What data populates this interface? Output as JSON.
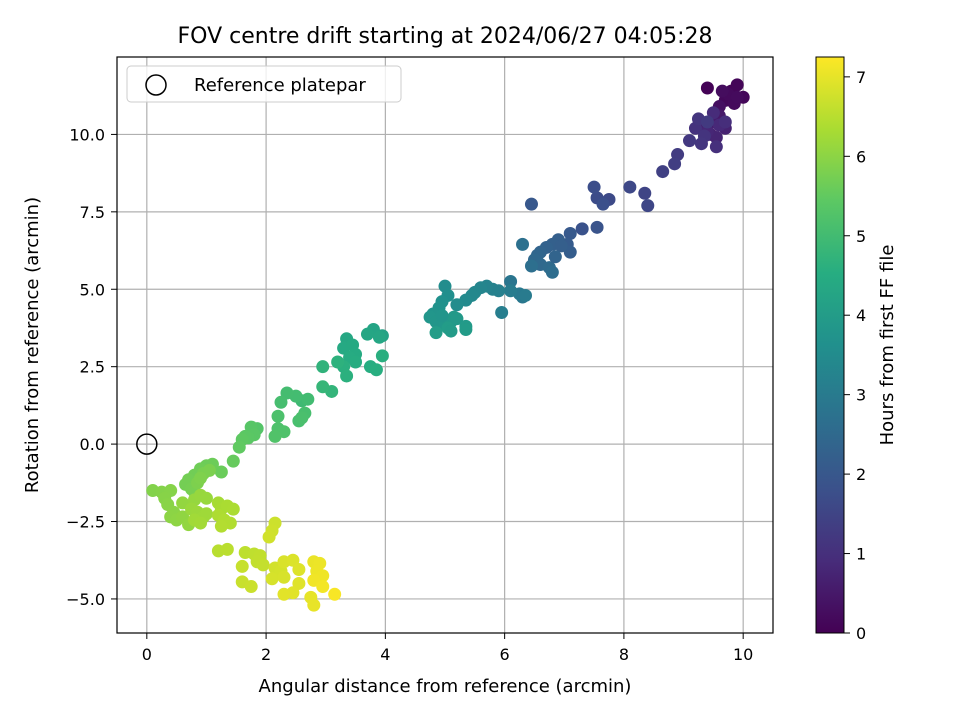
{
  "chart_data": {
    "type": "scatter",
    "title": "FOV centre drift starting at 2024/06/27 04:05:28",
    "xlabel": "Angular distance from reference (arcmin)",
    "ylabel": "Rotation from reference (arcmin)",
    "xlim": [
      -0.5,
      10.5
    ],
    "ylim": [
      -6.1,
      12.5
    ],
    "xticks": [
      0,
      2,
      4,
      6,
      8,
      10
    ],
    "xtick_labels": [
      "0",
      "2",
      "4",
      "6",
      "8",
      "10"
    ],
    "yticks": [
      -5.0,
      -2.5,
      0.0,
      2.5,
      5.0,
      7.5,
      10.0
    ],
    "ytick_labels": [
      "−5.0",
      "−2.5",
      "0.0",
      "2.5",
      "5.0",
      "7.5",
      "10.0"
    ],
    "grid": true,
    "legend": {
      "position": "top-left",
      "entries": [
        "Reference platepar"
      ]
    },
    "reference_point": {
      "x": 0.0,
      "y": 0.0
    },
    "colorbar": {
      "label": "Hours from first FF file",
      "colormap": "viridis",
      "range": [
        0,
        7.25
      ],
      "ticks": [
        0,
        1,
        2,
        3,
        4,
        5,
        6,
        7
      ],
      "tick_labels": [
        "0",
        "1",
        "2",
        "3",
        "4",
        "5",
        "6",
        "7"
      ]
    },
    "series": [
      {
        "points": [
          {
            "x": 9.4,
            "y": 11.5,
            "c": 0.05
          },
          {
            "x": 9.8,
            "y": 11.4,
            "c": 0.08
          },
          {
            "x": 9.9,
            "y": 11.6,
            "c": 0.1
          },
          {
            "x": 10.0,
            "y": 11.2,
            "c": 0.12
          },
          {
            "x": 9.7,
            "y": 11.1,
            "c": 0.15
          },
          {
            "x": 9.85,
            "y": 11.0,
            "c": 0.18
          },
          {
            "x": 9.75,
            "y": 11.3,
            "c": 0.2
          },
          {
            "x": 9.6,
            "y": 10.9,
            "c": 0.3
          },
          {
            "x": 9.65,
            "y": 11.4,
            "c": 0.25
          },
          {
            "x": 9.9,
            "y": 11.2,
            "c": 0.22
          },
          {
            "x": 9.6,
            "y": 10.6,
            "c": 0.5
          },
          {
            "x": 9.5,
            "y": 10.4,
            "c": 0.55
          },
          {
            "x": 9.3,
            "y": 10.3,
            "c": 0.6
          },
          {
            "x": 9.45,
            "y": 10.0,
            "c": 0.65
          },
          {
            "x": 9.7,
            "y": 10.2,
            "c": 0.7
          },
          {
            "x": 9.55,
            "y": 9.9,
            "c": 0.75
          },
          {
            "x": 9.4,
            "y": 10.1,
            "c": 0.8
          },
          {
            "x": 9.6,
            "y": 10.3,
            "c": 0.85
          },
          {
            "x": 9.5,
            "y": 10.7,
            "c": 0.9
          },
          {
            "x": 9.7,
            "y": 10.4,
            "c": 0.95
          },
          {
            "x": 9.55,
            "y": 9.6,
            "c": 1.0
          },
          {
            "x": 9.2,
            "y": 10.2,
            "c": 1.05
          },
          {
            "x": 9.35,
            "y": 9.95,
            "c": 1.1
          },
          {
            "x": 9.25,
            "y": 10.5,
            "c": 1.12
          },
          {
            "x": 9.3,
            "y": 9.7,
            "c": 1.15
          },
          {
            "x": 9.1,
            "y": 9.8,
            "c": 1.2
          },
          {
            "x": 9.4,
            "y": 10.4,
            "c": 1.25
          },
          {
            "x": 8.9,
            "y": 9.35,
            "c": 1.3
          },
          {
            "x": 8.85,
            "y": 9.05,
            "c": 1.35
          },
          {
            "x": 8.65,
            "y": 8.8,
            "c": 1.4
          },
          {
            "x": 8.35,
            "y": 8.1,
            "c": 1.5
          },
          {
            "x": 8.4,
            "y": 7.7,
            "c": 1.55
          },
          {
            "x": 8.1,
            "y": 8.3,
            "c": 1.6
          },
          {
            "x": 7.75,
            "y": 7.9,
            "c": 1.65
          },
          {
            "x": 7.55,
            "y": 7.95,
            "c": 1.7
          },
          {
            "x": 7.5,
            "y": 8.3,
            "c": 1.75
          },
          {
            "x": 7.65,
            "y": 7.75,
            "c": 1.8
          },
          {
            "x": 7.3,
            "y": 6.95,
            "c": 1.85
          },
          {
            "x": 7.55,
            "y": 7.0,
            "c": 1.9
          },
          {
            "x": 6.45,
            "y": 7.75,
            "c": 2.0
          },
          {
            "x": 7.1,
            "y": 6.8,
            "c": 2.05
          },
          {
            "x": 7.05,
            "y": 6.45,
            "c": 2.1
          },
          {
            "x": 7.1,
            "y": 6.2,
            "c": 2.15
          },
          {
            "x": 6.9,
            "y": 6.6,
            "c": 2.2
          },
          {
            "x": 6.8,
            "y": 6.45,
            "c": 2.25
          },
          {
            "x": 6.7,
            "y": 6.35,
            "c": 2.3
          },
          {
            "x": 6.6,
            "y": 6.2,
            "c": 2.35
          },
          {
            "x": 6.55,
            "y": 6.1,
            "c": 2.4
          },
          {
            "x": 6.5,
            "y": 5.95,
            "c": 2.45
          },
          {
            "x": 6.6,
            "y": 5.8,
            "c": 2.5
          },
          {
            "x": 6.75,
            "y": 5.7,
            "c": 2.55
          },
          {
            "x": 6.8,
            "y": 5.55,
            "c": 2.6
          },
          {
            "x": 6.45,
            "y": 5.75,
            "c": 2.65
          },
          {
            "x": 6.3,
            "y": 6.45,
            "c": 2.7
          },
          {
            "x": 6.95,
            "y": 6.4,
            "c": 2.2
          },
          {
            "x": 6.85,
            "y": 6.05,
            "c": 2.35
          },
          {
            "x": 6.1,
            "y": 5.25,
            "c": 2.85
          },
          {
            "x": 6.3,
            "y": 4.75,
            "c": 2.9
          },
          {
            "x": 6.25,
            "y": 4.85,
            "c": 2.95
          },
          {
            "x": 6.35,
            "y": 4.8,
            "c": 3.0
          },
          {
            "x": 6.1,
            "y": 4.95,
            "c": 3.05
          },
          {
            "x": 5.95,
            "y": 4.25,
            "c": 3.1
          },
          {
            "x": 5.9,
            "y": 4.95,
            "c": 3.15
          },
          {
            "x": 5.8,
            "y": 5.0,
            "c": 3.2
          },
          {
            "x": 5.7,
            "y": 5.1,
            "c": 3.25
          },
          {
            "x": 5.6,
            "y": 5.05,
            "c": 3.3
          },
          {
            "x": 5.5,
            "y": 4.9,
            "c": 3.35
          },
          {
            "x": 5.45,
            "y": 4.8,
            "c": 3.4
          },
          {
            "x": 5.35,
            "y": 4.65,
            "c": 3.45
          },
          {
            "x": 5.2,
            "y": 4.5,
            "c": 3.5
          },
          {
            "x": 5.0,
            "y": 5.1,
            "c": 3.55
          },
          {
            "x": 5.05,
            "y": 4.8,
            "c": 3.6
          },
          {
            "x": 4.95,
            "y": 4.6,
            "c": 3.65
          },
          {
            "x": 4.9,
            "y": 4.4,
            "c": 3.7
          },
          {
            "x": 4.8,
            "y": 4.2,
            "c": 3.75
          },
          {
            "x": 4.75,
            "y": 4.1,
            "c": 3.8
          },
          {
            "x": 4.85,
            "y": 3.95,
            "c": 3.82
          },
          {
            "x": 5.0,
            "y": 3.85,
            "c": 3.85
          },
          {
            "x": 5.1,
            "y": 3.95,
            "c": 3.88
          },
          {
            "x": 5.15,
            "y": 4.1,
            "c": 3.9
          },
          {
            "x": 5.2,
            "y": 4.05,
            "c": 3.92
          },
          {
            "x": 5.35,
            "y": 3.8,
            "c": 3.95
          },
          {
            "x": 5.35,
            "y": 3.7,
            "c": 3.98
          },
          {
            "x": 5.05,
            "y": 3.75,
            "c": 4.0
          },
          {
            "x": 4.85,
            "y": 3.6,
            "c": 4.02
          },
          {
            "x": 4.95,
            "y": 4.15,
            "c": 3.78
          },
          {
            "x": 5.1,
            "y": 3.65,
            "c": 3.97
          },
          {
            "x": 3.95,
            "y": 3.5,
            "c": 4.2
          },
          {
            "x": 3.8,
            "y": 3.7,
            "c": 4.25
          },
          {
            "x": 3.7,
            "y": 3.55,
            "c": 4.3
          },
          {
            "x": 3.9,
            "y": 3.45,
            "c": 4.32
          },
          {
            "x": 3.35,
            "y": 3.4,
            "c": 4.35
          },
          {
            "x": 3.3,
            "y": 3.1,
            "c": 4.4
          },
          {
            "x": 3.45,
            "y": 3.2,
            "c": 4.42
          },
          {
            "x": 3.5,
            "y": 2.9,
            "c": 4.45
          },
          {
            "x": 3.4,
            "y": 2.8,
            "c": 4.48
          },
          {
            "x": 3.5,
            "y": 2.65,
            "c": 4.5
          },
          {
            "x": 3.75,
            "y": 2.5,
            "c": 4.52
          },
          {
            "x": 3.85,
            "y": 2.4,
            "c": 4.55
          },
          {
            "x": 3.95,
            "y": 2.85,
            "c": 4.58
          },
          {
            "x": 3.3,
            "y": 2.5,
            "c": 4.6
          },
          {
            "x": 3.35,
            "y": 2.2,
            "c": 4.62
          },
          {
            "x": 3.2,
            "y": 2.65,
            "c": 4.65
          },
          {
            "x": 2.95,
            "y": 2.5,
            "c": 4.7
          },
          {
            "x": 3.1,
            "y": 1.7,
            "c": 4.75
          },
          {
            "x": 2.95,
            "y": 1.85,
            "c": 4.8
          },
          {
            "x": 2.6,
            "y": 1.4,
            "c": 4.95
          },
          {
            "x": 2.7,
            "y": 1.45,
            "c": 5.0
          },
          {
            "x": 2.5,
            "y": 1.55,
            "c": 5.02
          },
          {
            "x": 2.35,
            "y": 1.65,
            "c": 5.05
          },
          {
            "x": 2.25,
            "y": 1.35,
            "c": 5.08
          },
          {
            "x": 2.65,
            "y": 1.0,
            "c": 5.1
          },
          {
            "x": 2.55,
            "y": 0.75,
            "c": 5.12
          },
          {
            "x": 2.6,
            "y": 0.85,
            "c": 5.15
          },
          {
            "x": 2.2,
            "y": 0.9,
            "c": 5.18
          },
          {
            "x": 2.2,
            "y": 0.5,
            "c": 5.2
          },
          {
            "x": 2.3,
            "y": 0.4,
            "c": 5.22
          },
          {
            "x": 2.15,
            "y": 0.25,
            "c": 5.25
          },
          {
            "x": 1.85,
            "y": 0.5,
            "c": 5.3
          },
          {
            "x": 1.75,
            "y": 0.55,
            "c": 5.35
          },
          {
            "x": 1.8,
            "y": 0.3,
            "c": 5.38
          },
          {
            "x": 1.7,
            "y": 0.2,
            "c": 5.4
          },
          {
            "x": 1.65,
            "y": 0.25,
            "c": 5.42
          },
          {
            "x": 1.6,
            "y": 0.15,
            "c": 5.45
          },
          {
            "x": 1.55,
            "y": -0.1,
            "c": 5.48
          },
          {
            "x": 1.45,
            "y": -0.55,
            "c": 5.55
          },
          {
            "x": 1.25,
            "y": -0.9,
            "c": 5.6
          },
          {
            "x": 1.1,
            "y": -0.65,
            "c": 5.62
          },
          {
            "x": 1.0,
            "y": -0.7,
            "c": 5.64
          },
          {
            "x": 0.9,
            "y": -0.8,
            "c": 5.66
          },
          {
            "x": 0.8,
            "y": -1.0,
            "c": 5.68
          },
          {
            "x": 0.7,
            "y": -1.15,
            "c": 5.7
          },
          {
            "x": 0.65,
            "y": -1.3,
            "c": 5.72
          },
          {
            "x": 0.75,
            "y": -1.45,
            "c": 5.74
          },
          {
            "x": 0.8,
            "y": -1.55,
            "c": 5.76
          },
          {
            "x": 0.95,
            "y": -0.95,
            "c": 5.78
          },
          {
            "x": 1.05,
            "y": -0.85,
            "c": 5.8
          },
          {
            "x": 0.85,
            "y": -1.25,
            "c": 5.82
          },
          {
            "x": 0.9,
            "y": -1.1,
            "c": 5.84
          },
          {
            "x": 0.1,
            "y": -1.5,
            "c": 5.88
          },
          {
            "x": 0.25,
            "y": -1.55,
            "c": 5.9
          },
          {
            "x": 0.4,
            "y": -1.5,
            "c": 5.92
          },
          {
            "x": 0.3,
            "y": -1.75,
            "c": 5.94
          },
          {
            "x": 0.35,
            "y": -1.95,
            "c": 5.96
          },
          {
            "x": 0.45,
            "y": -2.2,
            "c": 5.98
          },
          {
            "x": 0.4,
            "y": -2.35,
            "c": 6.0
          },
          {
            "x": 0.5,
            "y": -2.45,
            "c": 6.02
          },
          {
            "x": 0.6,
            "y": -2.35,
            "c": 6.04
          },
          {
            "x": 0.7,
            "y": -2.6,
            "c": 6.06
          },
          {
            "x": 0.6,
            "y": -1.9,
            "c": 6.08
          },
          {
            "x": 0.8,
            "y": -1.8,
            "c": 6.1
          },
          {
            "x": 0.9,
            "y": -1.65,
            "c": 6.12
          },
          {
            "x": 1.0,
            "y": -1.75,
            "c": 6.14
          },
          {
            "x": 0.75,
            "y": -2.1,
            "c": 6.16
          },
          {
            "x": 0.85,
            "y": -2.2,
            "c": 6.18
          },
          {
            "x": 0.95,
            "y": -2.35,
            "c": 6.2
          },
          {
            "x": 1.0,
            "y": -2.25,
            "c": 6.22
          },
          {
            "x": 0.8,
            "y": -2.45,
            "c": 6.24
          },
          {
            "x": 0.9,
            "y": -2.55,
            "c": 6.26
          },
          {
            "x": 1.2,
            "y": -1.9,
            "c": 6.3
          },
          {
            "x": 1.25,
            "y": -2.1,
            "c": 6.32
          },
          {
            "x": 1.35,
            "y": -2.0,
            "c": 6.34
          },
          {
            "x": 1.45,
            "y": -2.1,
            "c": 6.36
          },
          {
            "x": 1.2,
            "y": -2.3,
            "c": 6.38
          },
          {
            "x": 1.3,
            "y": -2.45,
            "c": 6.4
          },
          {
            "x": 1.4,
            "y": -2.55,
            "c": 6.42
          },
          {
            "x": 1.25,
            "y": -2.65,
            "c": 6.44
          },
          {
            "x": 1.2,
            "y": -3.45,
            "c": 6.5
          },
          {
            "x": 1.35,
            "y": -3.4,
            "c": 6.52
          },
          {
            "x": 1.65,
            "y": -3.5,
            "c": 6.55
          },
          {
            "x": 1.8,
            "y": -3.55,
            "c": 6.57
          },
          {
            "x": 1.9,
            "y": -3.6,
            "c": 6.59
          },
          {
            "x": 1.85,
            "y": -3.8,
            "c": 6.61
          },
          {
            "x": 1.95,
            "y": -3.9,
            "c": 6.63
          },
          {
            "x": 1.6,
            "y": -3.95,
            "c": 6.65
          },
          {
            "x": 1.6,
            "y": -4.45,
            "c": 6.67
          },
          {
            "x": 1.75,
            "y": -4.6,
            "c": 6.69
          },
          {
            "x": 2.15,
            "y": -2.55,
            "c": 6.72
          },
          {
            "x": 2.1,
            "y": -2.8,
            "c": 6.74
          },
          {
            "x": 2.05,
            "y": -3.0,
            "c": 6.76
          },
          {
            "x": 2.15,
            "y": -4.0,
            "c": 6.78
          },
          {
            "x": 2.25,
            "y": -4.1,
            "c": 6.8
          },
          {
            "x": 2.1,
            "y": -4.35,
            "c": 6.82
          },
          {
            "x": 2.3,
            "y": -4.3,
            "c": 6.84
          },
          {
            "x": 2.3,
            "y": -3.8,
            "c": 6.86
          },
          {
            "x": 2.45,
            "y": -3.75,
            "c": 6.88
          },
          {
            "x": 2.55,
            "y": -4.05,
            "c": 6.9
          },
          {
            "x": 2.55,
            "y": -4.5,
            "c": 6.92
          },
          {
            "x": 2.45,
            "y": -4.8,
            "c": 6.94
          },
          {
            "x": 2.3,
            "y": -4.85,
            "c": 6.96
          },
          {
            "x": 2.75,
            "y": -4.95,
            "c": 7.0
          },
          {
            "x": 2.8,
            "y": -5.2,
            "c": 7.02
          },
          {
            "x": 2.8,
            "y": -3.8,
            "c": 7.04
          },
          {
            "x": 2.9,
            "y": -3.85,
            "c": 7.06
          },
          {
            "x": 2.85,
            "y": -4.1,
            "c": 7.08
          },
          {
            "x": 2.95,
            "y": -4.25,
            "c": 7.1
          },
          {
            "x": 2.8,
            "y": -4.4,
            "c": 7.12
          },
          {
            "x": 2.95,
            "y": -4.6,
            "c": 7.14
          },
          {
            "x": 3.15,
            "y": -4.85,
            "c": 7.2
          }
        ]
      }
    ]
  }
}
